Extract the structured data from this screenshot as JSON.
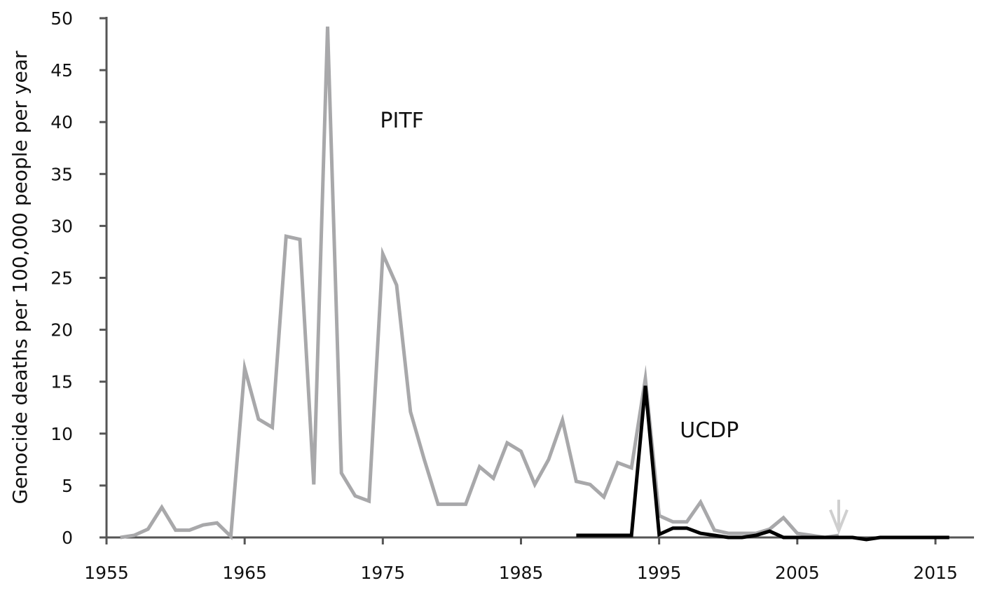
{
  "chart_data": {
    "type": "line",
    "title": "",
    "xlabel": "",
    "ylabel": "Genocide deaths per 100,000 people per year",
    "xlim": [
      1955,
      2017
    ],
    "ylim": [
      0,
      50
    ],
    "x_ticks": [
      1955,
      1965,
      1975,
      1985,
      1995,
      2005,
      2015
    ],
    "y_ticks": [
      0,
      5,
      10,
      15,
      20,
      25,
      30,
      35,
      40,
      45,
      50
    ],
    "grid": false,
    "legend": "none",
    "series": [
      {
        "name": "PITF",
        "color": "#a8a8aa",
        "x": [
          1956,
          1957,
          1958,
          1959,
          1960,
          1961,
          1962,
          1963,
          1964,
          1965,
          1966,
          1967,
          1968,
          1969,
          1970,
          1971,
          1972,
          1973,
          1974,
          1975,
          1976,
          1977,
          1978,
          1979,
          1980,
          1981,
          1982,
          1983,
          1984,
          1985,
          1986,
          1987,
          1988,
          1989,
          1990,
          1991,
          1992,
          1993,
          1994,
          1995,
          1996,
          1997,
          1998,
          1999,
          2000,
          2001,
          2002,
          2003,
          2004,
          2005,
          2006,
          2007,
          2008
        ],
        "values": [
          0,
          0.2,
          0.8,
          2.9,
          0.7,
          0.7,
          1.2,
          1.4,
          0.1,
          16.3,
          11.4,
          10.6,
          29.0,
          28.7,
          5.1,
          49.2,
          6.2,
          4.0,
          3.5,
          27.3,
          24.3,
          12.1,
          7.5,
          3.2,
          3.2,
          3.2,
          6.8,
          5.7,
          9.1,
          8.3,
          5.1,
          7.5,
          11.3,
          5.4,
          5.1,
          3.9,
          7.2,
          6.7,
          15.3,
          2.1,
          1.5,
          1.5,
          3.4,
          0.7,
          0.4,
          0.4,
          0.4,
          0.8,
          1.9,
          0.4,
          0.2,
          0.0,
          0.2
        ]
      },
      {
        "name": "UCDP",
        "color": "#000000",
        "x": [
          1989,
          1990,
          1991,
          1992,
          1993,
          1994,
          1995,
          1996,
          1997,
          1998,
          1999,
          2000,
          2001,
          2002,
          2003,
          2004,
          2005,
          2006,
          2007,
          2008,
          2009,
          2010,
          2011,
          2012,
          2013,
          2014,
          2015,
          2016
        ],
        "values": [
          0.2,
          0.2,
          0.2,
          0.2,
          0.2,
          14.6,
          0.3,
          0.9,
          0.9,
          0.4,
          0.2,
          0.0,
          0.0,
          0.2,
          0.6,
          0.0,
          0.0,
          0.0,
          0.0,
          0.0,
          0.0,
          -0.2,
          0.0,
          0.0,
          0.0,
          0.0,
          0.0,
          0.0
        ]
      }
    ],
    "annotations": [
      {
        "text": "PITF",
        "x": 1974.8,
        "y": 40
      },
      {
        "text": "UCDP",
        "x": 1996.5,
        "y": 10.2
      }
    ],
    "marker_arrow": {
      "x": 2008,
      "y_from": 6,
      "y_to": 0.5,
      "color": "#cfcfcf"
    }
  }
}
